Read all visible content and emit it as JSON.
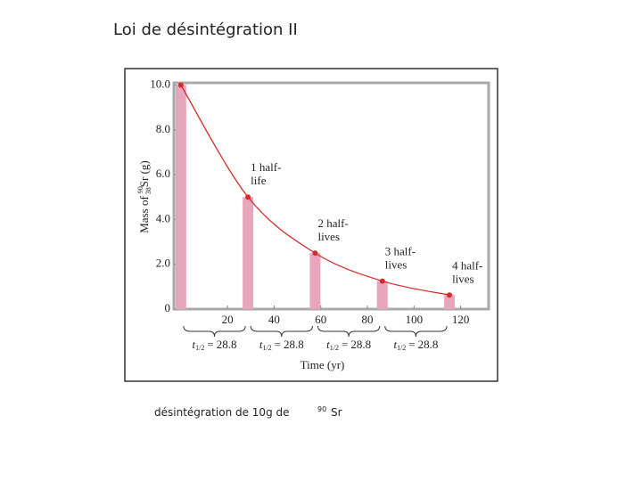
{
  "title": "Loi de désintégration II",
  "caption": {
    "text": "désintégration de 10g de",
    "mass_number": "90",
    "element": "Sr"
  },
  "chart_data": {
    "type": "bar",
    "x_label": "Time (yr)",
    "y_label": {
      "prefix": "Mass of",
      "mass_number": "90",
      "atomic_number": "38",
      "suffix": "Sr (g)"
    },
    "x": [
      0,
      28.8,
      57.6,
      86.4,
      115.2
    ],
    "values": [
      10,
      5,
      2.5,
      1.25,
      0.625
    ],
    "color": "#e8a6bd",
    "curve_color": "#d62b2b",
    "xlim": [
      -3,
      132
    ],
    "ylim": [
      0,
      10.1
    ],
    "xticks": [
      20,
      40,
      60,
      80,
      100,
      120
    ],
    "yticks": [
      0,
      {
        "value": 2,
        "label": "2.0"
      },
      {
        "value": 4,
        "label": "4.0"
      },
      {
        "value": 6,
        "label": "6.0"
      },
      {
        "value": 8,
        "label": "8.0"
      },
      {
        "value": 10,
        "label": "10.0"
      }
    ],
    "annotations": [
      {
        "lines": [
          "1 half-",
          "life"
        ]
      },
      {
        "lines": [
          "2 half-",
          "lives"
        ]
      },
      {
        "lines": [
          "3 half-",
          "lives"
        ]
      },
      {
        "lines": [
          "4 half-",
          "lives"
        ]
      }
    ],
    "half_life_labels": [
      {
        "symbol": "t",
        "subscript": "1/2",
        "equals": "=",
        "value": 28.8
      },
      {
        "symbol": "t",
        "subscript": "1/2",
        "equals": "=",
        "value": 28.8
      },
      {
        "symbol": "t",
        "subscript": "1/2",
        "equals": "=",
        "value": 28.8
      },
      {
        "symbol": "t",
        "subscript": "1/2",
        "equals": "=",
        "value": 28.8
      }
    ]
  }
}
